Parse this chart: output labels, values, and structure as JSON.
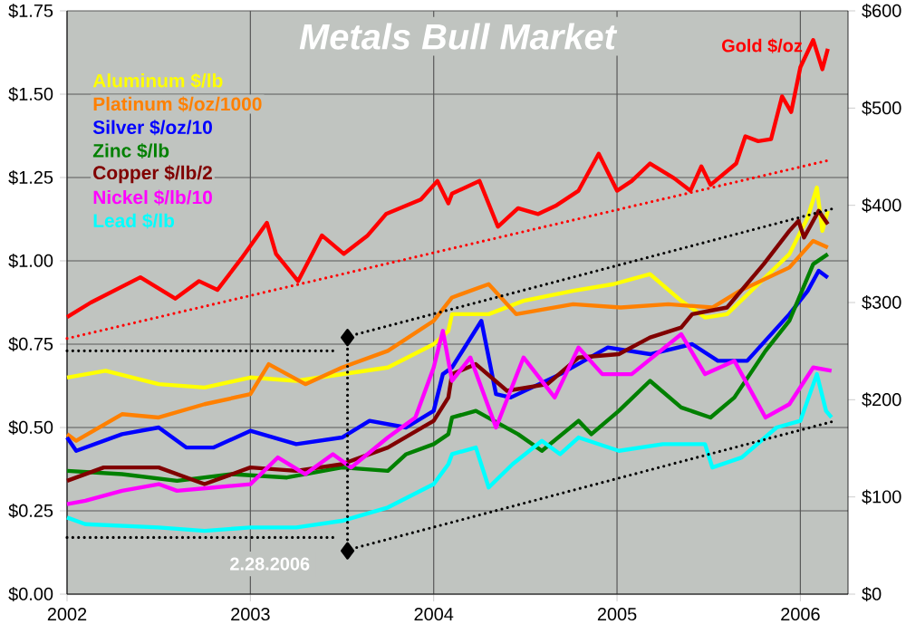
{
  "chart_data": {
    "type": "line",
    "title": "Metals Bull Market",
    "annotations": [
      "2.28.2006"
    ],
    "xlim": [
      2002,
      2006.26
    ],
    "xticks": [
      2002,
      2003,
      2004,
      2005,
      2006
    ],
    "ylim": [
      0,
      1.75
    ],
    "yticks": [
      {
        "value": 0,
        "label": "$0.00"
      },
      {
        "value": 0.25,
        "label": "$0.25"
      },
      {
        "value": 0.5,
        "label": "$0.50"
      },
      {
        "value": 0.75,
        "label": "$0.75"
      },
      {
        "value": 1.0,
        "label": "$1.00"
      },
      {
        "value": 1.25,
        "label": "$1.25"
      },
      {
        "value": 1.5,
        "label": "$1.50"
      },
      {
        "value": 1.75,
        "label": "$1.75"
      }
    ],
    "y2lim": [
      0,
      600
    ],
    "y2ticks": [
      {
        "value": 0,
        "label": "$0"
      },
      {
        "value": 100,
        "label": "$100"
      },
      {
        "value": 200,
        "label": "$200"
      },
      {
        "value": 300,
        "label": "$300"
      },
      {
        "value": 400,
        "label": "$400"
      },
      {
        "value": 500,
        "label": "$500"
      },
      {
        "value": 600,
        "label": "$600"
      }
    ],
    "grid": true,
    "legend": "top left",
    "marker": "none",
    "line_style": "solid",
    "series": [
      {
        "name": "Aluminum $/lb",
        "color": "#ffff00",
        "x": [
          2002.0,
          2002.21,
          2002.5,
          2002.75,
          2003.0,
          2003.25,
          2003.5,
          2003.75,
          2004.0,
          2004.08,
          2004.1,
          2004.3,
          2004.49,
          2004.76,
          2004.98,
          2005.18,
          2005.35,
          2005.48,
          2005.6,
          2005.77,
          2005.94,
          2006.04,
          2006.09,
          2006.12,
          2006.15
        ],
        "values": [
          0.65,
          0.67,
          0.63,
          0.62,
          0.65,
          0.64,
          0.66,
          0.68,
          0.75,
          0.79,
          0.84,
          0.84,
          0.88,
          0.91,
          0.93,
          0.96,
          0.88,
          0.83,
          0.84,
          0.93,
          1.02,
          1.13,
          1.22,
          1.09,
          1.15
        ]
      },
      {
        "name": "Platinum $/oz/1000",
        "color": "#ff8000",
        "x": [
          2002.0,
          2002.05,
          2002.3,
          2002.5,
          2002.75,
          2003.0,
          2003.1,
          2003.3,
          2003.5,
          2003.75,
          2004.0,
          2004.1,
          2004.3,
          2004.45,
          2004.76,
          2005.02,
          2005.28,
          2005.52,
          2005.67,
          2005.94,
          2006.07,
          2006.15
        ],
        "values": [
          0.48,
          0.46,
          0.54,
          0.53,
          0.57,
          0.6,
          0.69,
          0.63,
          0.68,
          0.73,
          0.82,
          0.89,
          0.93,
          0.84,
          0.87,
          0.86,
          0.87,
          0.86,
          0.91,
          0.98,
          1.06,
          1.04
        ]
      },
      {
        "name": "Silver $/oz/10",
        "color": "#0000ff",
        "x": [
          2002.0,
          2002.05,
          2002.3,
          2002.5,
          2002.65,
          2002.8,
          2003.0,
          2003.25,
          2003.5,
          2003.65,
          2003.85,
          2004.0,
          2004.05,
          2004.1,
          2004.26,
          2004.34,
          2004.42,
          2004.69,
          2004.95,
          2005.18,
          2005.41,
          2005.55,
          2005.71,
          2005.94,
          2006.04,
          2006.1,
          2006.15
        ],
        "values": [
          0.47,
          0.43,
          0.48,
          0.5,
          0.44,
          0.44,
          0.49,
          0.45,
          0.47,
          0.52,
          0.5,
          0.55,
          0.66,
          0.68,
          0.82,
          0.6,
          0.59,
          0.66,
          0.74,
          0.72,
          0.75,
          0.7,
          0.7,
          0.84,
          0.91,
          0.97,
          0.95
        ]
      },
      {
        "name": "Zinc $/lb",
        "color": "#008000",
        "x": [
          2002.0,
          2002.3,
          2002.6,
          2002.9,
          2003.2,
          2003.5,
          2003.75,
          2003.85,
          2004.0,
          2004.08,
          2004.1,
          2004.23,
          2004.46,
          2004.59,
          2004.79,
          2004.86,
          2005.01,
          2005.18,
          2005.35,
          2005.51,
          2005.64,
          2005.81,
          2005.94,
          2006.07,
          2006.15
        ],
        "values": [
          0.37,
          0.36,
          0.34,
          0.36,
          0.35,
          0.38,
          0.37,
          0.42,
          0.45,
          0.48,
          0.53,
          0.55,
          0.48,
          0.43,
          0.52,
          0.48,
          0.55,
          0.64,
          0.56,
          0.53,
          0.59,
          0.73,
          0.82,
          0.99,
          1.02
        ]
      },
      {
        "name": "Copper $/lb/2",
        "color": "#800000",
        "x": [
          2002.0,
          2002.2,
          2002.5,
          2002.75,
          2003.0,
          2003.25,
          2003.5,
          2003.75,
          2004.0,
          2004.08,
          2004.1,
          2004.23,
          2004.4,
          2004.62,
          2004.79,
          2005.01,
          2005.18,
          2005.35,
          2005.41,
          2005.6,
          2005.8,
          2005.94,
          2005.99,
          2006.02,
          2006.1,
          2006.15
        ],
        "values": [
          0.34,
          0.38,
          0.38,
          0.33,
          0.38,
          0.37,
          0.39,
          0.44,
          0.52,
          0.59,
          0.66,
          0.69,
          0.61,
          0.63,
          0.71,
          0.72,
          0.77,
          0.8,
          0.84,
          0.86,
          0.99,
          1.09,
          1.12,
          1.07,
          1.15,
          1.11
        ]
      },
      {
        "name": "Nickel $/lb/10",
        "color": "#ff00ff",
        "x": [
          2002.0,
          2002.1,
          2002.3,
          2002.5,
          2002.6,
          2002.8,
          2003.0,
          2003.15,
          2003.3,
          2003.45,
          2003.55,
          2003.75,
          2003.9,
          2004.0,
          2004.05,
          2004.1,
          2004.2,
          2004.34,
          2004.49,
          2004.66,
          2004.79,
          2004.92,
          2005.08,
          2005.35,
          2005.48,
          2005.64,
          2005.81,
          2005.94,
          2006.07,
          2006.17
        ],
        "values": [
          0.27,
          0.28,
          0.31,
          0.33,
          0.31,
          0.32,
          0.33,
          0.41,
          0.36,
          0.42,
          0.38,
          0.47,
          0.53,
          0.68,
          0.79,
          0.64,
          0.71,
          0.5,
          0.71,
          0.59,
          0.74,
          0.66,
          0.66,
          0.78,
          0.66,
          0.7,
          0.53,
          0.57,
          0.68,
          0.67
        ]
      },
      {
        "name": "Lead $/lb",
        "color": "#00ffff",
        "x": [
          2002.0,
          2002.1,
          2002.5,
          2002.75,
          2003.0,
          2003.25,
          2003.5,
          2003.75,
          2004.0,
          2004.08,
          2004.1,
          2004.23,
          2004.3,
          2004.43,
          2004.59,
          2004.69,
          2004.79,
          2005.01,
          2005.25,
          2005.48,
          2005.52,
          2005.68,
          2005.87,
          2006.0,
          2006.09,
          2006.14,
          2006.17
        ],
        "values": [
          0.23,
          0.21,
          0.2,
          0.19,
          0.2,
          0.2,
          0.22,
          0.26,
          0.33,
          0.39,
          0.42,
          0.44,
          0.32,
          0.39,
          0.46,
          0.42,
          0.47,
          0.43,
          0.45,
          0.45,
          0.38,
          0.41,
          0.5,
          0.52,
          0.66,
          0.55,
          0.53
        ]
      },
      {
        "name": "Gold $/oz",
        "color": "#ff0000",
        "axis": "y2",
        "x": [
          2002.0,
          2002.13,
          2002.4,
          2002.59,
          2002.72,
          2002.82,
          2002.95,
          2003.09,
          2003.14,
          2003.26,
          2003.39,
          2003.51,
          2003.64,
          2003.74,
          2003.93,
          2004.02,
          2004.08,
          2004.1,
          2004.25,
          2004.35,
          2004.46,
          2004.57,
          2004.67,
          2004.79,
          2004.9,
          2005.0,
          2005.08,
          2005.18,
          2005.31,
          2005.4,
          2005.46,
          2005.51,
          2005.65,
          2005.7,
          2005.77,
          2005.84,
          2005.9,
          2005.95,
          2006.0,
          2006.07,
          2006.12,
          2006.15
        ],
        "values": [
          285,
          300,
          326,
          304,
          322,
          313,
          345,
          382,
          350,
          322,
          369,
          350,
          369,
          391,
          406,
          425,
          402,
          412,
          425,
          378,
          397,
          391,
          400,
          415,
          453,
          415,
          425,
          443,
          428,
          415,
          440,
          421,
          443,
          471,
          466,
          468,
          512,
          496,
          542,
          570,
          540,
          561
        ]
      },
      {
        "type": "line",
        "color": "#ff0000",
        "axis": "y2",
        "line_style": "dotted",
        "x": [
          2002.0,
          2006.17
        ],
        "values": [
          263,
          447
        ]
      },
      {
        "type": "line",
        "color": "#000000",
        "line_style": "dotted",
        "x": [
          2003.58,
          2006.2
        ],
        "values": [
          0.78,
          1.16
        ]
      },
      {
        "type": "line",
        "color": "#000000",
        "line_style": "dotted",
        "x": [
          2003.58,
          2006.19
        ],
        "values": [
          0.14,
          0.52
        ]
      },
      {
        "type": "line",
        "color": "#000000",
        "line_style": "dotted",
        "x": [
          2002.0,
          2003.45
        ],
        "values": [
          0.73,
          0.73
        ]
      },
      {
        "type": "line",
        "color": "#000000",
        "line_style": "dotted",
        "x": [
          2002.0,
          2003.45
        ],
        "values": [
          0.17,
          0.17
        ]
      },
      {
        "type": "line",
        "color": "#000000",
        "line_style": "dotted",
        "marker": "diamond",
        "x": [
          2003.53,
          2003.53
        ],
        "values": [
          0.77,
          0.13
        ]
      }
    ]
  }
}
